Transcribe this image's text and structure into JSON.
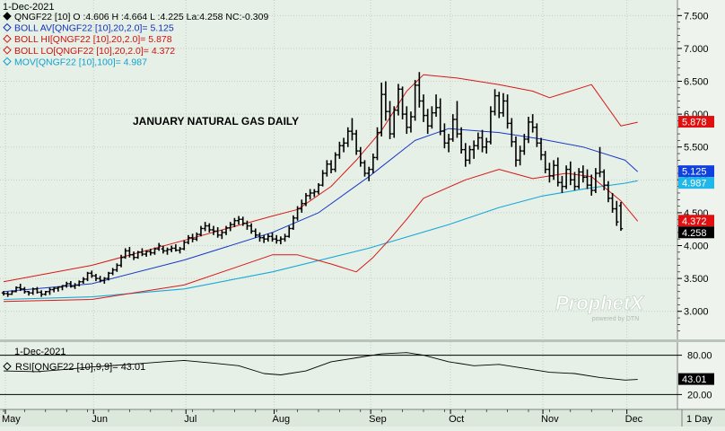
{
  "main_panel": {
    "date": "1-Dec-2021",
    "legend": [
      {
        "text": "QNGF22 [10] O :4.606 H :4.664 L :4.225 La:4.258 NC:-0.309",
        "color": "#000000",
        "marker": "diamond-filled"
      },
      {
        "text": "BOLL AV[QNGF22 [10],20,2.0]= 5.125",
        "color": "#1030c0",
        "marker": "diamond-open"
      },
      {
        "text": "BOLL HI[QNGF22 [10],20,2.0]= 5.878",
        "color": "#d01010",
        "marker": "diamond-open"
      },
      {
        "text": "BOLL LO[QNGF22 [10],20,2.0]= 4.372",
        "color": "#d01010",
        "marker": "diamond-open"
      },
      {
        "text": "MOV[QNGF22 [10],100]= 4.987",
        "color": "#10a0d0",
        "marker": "diamond-open"
      }
    ],
    "annotation": "JANUARY NATURAL GAS DAILY",
    "y_ticks": [
      "7.500",
      "7.000",
      "6.500",
      "6.000",
      "5.500",
      "5.000",
      "4.500",
      "4.000",
      "3.500",
      "3.000"
    ],
    "price_tags": [
      {
        "value": 5.878,
        "text": "5.878",
        "bg": "#e01010",
        "fg": "#ffffff"
      },
      {
        "value": 5.125,
        "text": "5.125",
        "bg": "#1040e0",
        "fg": "#ffffff"
      },
      {
        "value": 4.987,
        "text": "4.987",
        "bg": "#20b8e8",
        "fg": "#ffffff"
      },
      {
        "value": 4.372,
        "text": "4.372",
        "bg": "#e01010",
        "fg": "#ffffff"
      },
      {
        "value": 4.258,
        "text": "4.258",
        "bg": "#000000",
        "fg": "#ffffff"
      }
    ],
    "watermark": {
      "brand": "ProphetX",
      "sub": "powered by DTN"
    }
  },
  "rsi_panel": {
    "date": "1-Dec-2021",
    "legend": {
      "text": "RSI[QNGF22 [10],9,9]= 43.01",
      "marker": "diamond-open"
    },
    "y_ticks": [
      "80.00",
      "20.00"
    ],
    "value_tag": {
      "value": 43.01,
      "text": "43.01",
      "bg": "#000000",
      "fg": "#ffffff"
    }
  },
  "x_axis": {
    "months": [
      "May",
      "Jun",
      "Jul",
      "Aug",
      "Sep",
      "Oct",
      "Nov",
      "Dec"
    ],
    "interval": "1 Day"
  },
  "chart_data": {
    "type": "ohlc",
    "ylim": [
      2.6,
      7.6
    ],
    "rsi_ylim": [
      0,
      100
    ],
    "rsi_levels": [
      80,
      20
    ],
    "month_starts": [
      0,
      21,
      43,
      64,
      87,
      106,
      128,
      148
    ],
    "bars": [
      [
        3.28,
        3.31,
        3.24,
        3.27
      ],
      [
        3.27,
        3.3,
        3.22,
        3.26
      ],
      [
        3.26,
        3.32,
        3.25,
        3.3
      ],
      [
        3.3,
        3.38,
        3.29,
        3.36
      ],
      [
        3.36,
        3.42,
        3.31,
        3.34
      ],
      [
        3.34,
        3.37,
        3.27,
        3.3
      ],
      [
        3.3,
        3.31,
        3.24,
        3.28
      ],
      [
        3.28,
        3.36,
        3.25,
        3.34
      ],
      [
        3.34,
        3.37,
        3.27,
        3.29
      ],
      [
        3.29,
        3.32,
        3.22,
        3.26
      ],
      [
        3.26,
        3.31,
        3.24,
        3.3
      ],
      [
        3.3,
        3.36,
        3.25,
        3.33
      ],
      [
        3.33,
        3.37,
        3.29,
        3.35
      ],
      [
        3.35,
        3.38,
        3.3,
        3.37
      ],
      [
        3.37,
        3.4,
        3.32,
        3.39
      ],
      [
        3.39,
        3.45,
        3.36,
        3.42
      ],
      [
        3.42,
        3.46,
        3.36,
        3.38
      ],
      [
        3.38,
        3.43,
        3.34,
        3.4
      ],
      [
        3.4,
        3.47,
        3.38,
        3.45
      ],
      [
        3.45,
        3.52,
        3.42,
        3.49
      ],
      [
        3.49,
        3.6,
        3.46,
        3.58
      ],
      [
        3.58,
        3.62,
        3.51,
        3.54
      ],
      [
        3.54,
        3.57,
        3.46,
        3.5
      ],
      [
        3.5,
        3.54,
        3.44,
        3.47
      ],
      [
        3.47,
        3.52,
        3.42,
        3.5
      ],
      [
        3.5,
        3.6,
        3.47,
        3.58
      ],
      [
        3.58,
        3.66,
        3.55,
        3.63
      ],
      [
        3.63,
        3.73,
        3.6,
        3.7
      ],
      [
        3.7,
        3.86,
        3.67,
        3.82
      ],
      [
        3.82,
        3.96,
        3.8,
        3.92
      ],
      [
        3.92,
        3.98,
        3.82,
        3.86
      ],
      [
        3.86,
        3.91,
        3.78,
        3.82
      ],
      [
        3.82,
        3.92,
        3.8,
        3.9
      ],
      [
        3.9,
        3.96,
        3.84,
        3.87
      ],
      [
        3.87,
        3.93,
        3.83,
        3.91
      ],
      [
        3.91,
        3.95,
        3.85,
        3.89
      ],
      [
        3.89,
        3.97,
        3.86,
        3.95
      ],
      [
        3.95,
        4.04,
        3.92,
        4.0
      ],
      [
        3.95,
        4.0,
        3.88,
        3.92
      ],
      [
        3.92,
        3.97,
        3.86,
        3.94
      ],
      [
        3.94,
        4.0,
        3.9,
        3.96
      ],
      [
        3.96,
        4.02,
        3.91,
        3.93
      ],
      [
        3.93,
        3.98,
        3.88,
        3.95
      ],
      [
        3.95,
        4.08,
        3.93,
        4.05
      ],
      [
        4.05,
        4.16,
        4.02,
        4.12
      ],
      [
        4.12,
        4.18,
        4.05,
        4.1
      ],
      [
        4.1,
        4.2,
        4.07,
        4.17
      ],
      [
        4.17,
        4.3,
        4.14,
        4.26
      ],
      [
        4.26,
        4.36,
        4.22,
        4.3
      ],
      [
        4.3,
        4.34,
        4.2,
        4.24
      ],
      [
        4.24,
        4.3,
        4.16,
        4.22
      ],
      [
        4.22,
        4.28,
        4.12,
        4.16
      ],
      [
        4.16,
        4.24,
        4.1,
        4.2
      ],
      [
        4.2,
        4.3,
        4.16,
        4.27
      ],
      [
        4.27,
        4.36,
        4.22,
        4.32
      ],
      [
        4.32,
        4.42,
        4.28,
        4.38
      ],
      [
        4.38,
        4.45,
        4.32,
        4.4
      ],
      [
        4.4,
        4.44,
        4.3,
        4.34
      ],
      [
        4.34,
        4.38,
        4.24,
        4.3
      ],
      [
        4.3,
        4.34,
        4.18,
        4.22
      ],
      [
        4.22,
        4.26,
        4.12,
        4.16
      ],
      [
        4.16,
        4.2,
        4.06,
        4.12
      ],
      [
        4.12,
        4.16,
        4.04,
        4.1
      ],
      [
        4.1,
        4.18,
        4.06,
        4.14
      ],
      [
        4.14,
        4.2,
        4.06,
        4.1
      ],
      [
        4.1,
        4.16,
        4.03,
        4.08
      ],
      [
        4.08,
        4.14,
        4.02,
        4.1
      ],
      [
        4.1,
        4.18,
        4.06,
        4.14
      ],
      [
        4.14,
        4.3,
        4.12,
        4.26
      ],
      [
        4.26,
        4.46,
        4.24,
        4.42
      ],
      [
        4.42,
        4.6,
        4.38,
        4.56
      ],
      [
        4.56,
        4.7,
        4.5,
        4.64
      ],
      [
        4.64,
        4.8,
        4.6,
        4.76
      ],
      [
        4.76,
        4.86,
        4.7,
        4.8
      ],
      [
        4.8,
        4.86,
        4.74,
        4.82
      ],
      [
        4.82,
        4.95,
        4.78,
        4.92
      ],
      [
        4.92,
        5.15,
        4.9,
        5.1
      ],
      [
        5.1,
        5.3,
        5.05,
        5.24
      ],
      [
        5.24,
        5.3,
        5.1,
        5.16
      ],
      [
        5.16,
        5.42,
        5.12,
        5.38
      ],
      [
        5.38,
        5.58,
        5.32,
        5.52
      ],
      [
        5.52,
        5.64,
        5.42,
        5.56
      ],
      [
        5.56,
        5.8,
        5.5,
        5.74
      ],
      [
        5.74,
        5.94,
        5.6,
        5.7
      ],
      [
        5.7,
        5.76,
        5.38,
        5.44
      ],
      [
        5.44,
        5.5,
        5.2,
        5.26
      ],
      [
        5.26,
        5.3,
        5.05,
        5.1
      ],
      [
        5.1,
        5.2,
        4.98,
        5.16
      ],
      [
        5.16,
        5.4,
        5.1,
        5.34
      ],
      [
        5.34,
        5.8,
        5.3,
        5.72
      ],
      [
        5.72,
        6.48,
        5.66,
        6.3
      ],
      [
        6.3,
        6.5,
        5.9,
        6.04
      ],
      [
        6.04,
        6.2,
        5.62,
        5.7
      ],
      [
        5.7,
        6.12,
        5.64,
        6.06
      ],
      [
        6.06,
        6.46,
        5.98,
        6.38
      ],
      [
        6.38,
        6.42,
        5.92,
        6.0
      ],
      [
        6.0,
        6.12,
        5.7,
        5.8
      ],
      [
        5.8,
        6.04,
        5.72,
        5.96
      ],
      [
        5.96,
        6.52,
        5.9,
        6.44
      ],
      [
        6.44,
        6.64,
        6.1,
        6.2
      ],
      [
        6.2,
        6.3,
        5.88,
        5.98
      ],
      [
        5.98,
        6.08,
        5.7,
        5.82
      ],
      [
        5.82,
        6.12,
        5.78,
        6.02
      ],
      [
        6.02,
        6.3,
        5.96,
        6.1
      ],
      [
        6.1,
        6.24,
        5.68,
        5.74
      ],
      [
        5.74,
        5.86,
        5.48,
        5.56
      ],
      [
        5.56,
        5.7,
        5.42,
        5.62
      ],
      [
        5.62,
        6.0,
        5.58,
        5.92
      ],
      [
        5.92,
        6.2,
        5.64,
        5.7
      ],
      [
        5.7,
        5.8,
        5.4,
        5.46
      ],
      [
        5.46,
        5.56,
        5.2,
        5.3
      ],
      [
        5.3,
        5.52,
        5.24,
        5.46
      ],
      [
        5.46,
        5.6,
        5.32,
        5.52
      ],
      [
        5.52,
        5.72,
        5.46,
        5.64
      ],
      [
        5.64,
        5.76,
        5.42,
        5.5
      ],
      [
        5.5,
        5.64,
        5.4,
        5.58
      ],
      [
        5.58,
        6.12,
        5.54,
        6.04
      ],
      [
        6.04,
        6.38,
        5.98,
        6.28
      ],
      [
        6.28,
        6.34,
        5.94,
        6.02
      ],
      [
        6.02,
        6.32,
        5.96,
        6.2
      ],
      [
        6.2,
        6.3,
        5.78,
        5.86
      ],
      [
        5.86,
        5.94,
        5.5,
        5.58
      ],
      [
        5.58,
        5.66,
        5.2,
        5.3
      ],
      [
        5.3,
        5.52,
        5.22,
        5.44
      ],
      [
        5.44,
        5.7,
        5.38,
        5.62
      ],
      [
        5.62,
        5.96,
        5.56,
        5.88
      ],
      [
        5.88,
        6.0,
        5.72,
        5.8
      ],
      [
        5.8,
        5.86,
        5.5,
        5.56
      ],
      [
        5.56,
        5.64,
        5.3,
        5.38
      ],
      [
        5.38,
        5.44,
        5.1,
        5.16
      ],
      [
        5.16,
        5.26,
        4.96,
        5.06
      ],
      [
        5.06,
        5.3,
        5.0,
        5.22
      ],
      [
        5.22,
        5.34,
        4.9,
        4.96
      ],
      [
        4.96,
        5.06,
        4.8,
        4.9
      ],
      [
        4.9,
        5.22,
        4.86,
        5.16
      ],
      [
        5.16,
        5.28,
        4.92,
        5.0
      ],
      [
        5.0,
        5.12,
        4.84,
        4.9
      ],
      [
        4.9,
        5.18,
        4.86,
        5.12
      ],
      [
        5.12,
        5.22,
        4.96,
        5.04
      ],
      [
        5.04,
        5.16,
        4.86,
        4.92
      ],
      [
        4.92,
        5.08,
        4.76,
        4.84
      ],
      [
        4.84,
        5.18,
        4.8,
        5.1
      ],
      [
        5.1,
        5.5,
        5.04,
        5.12
      ],
      [
        5.12,
        5.16,
        4.84,
        4.92
      ],
      [
        4.92,
        4.98,
        4.66,
        4.72
      ],
      [
        4.72,
        4.8,
        4.5,
        4.56
      ],
      [
        4.56,
        4.68,
        4.3,
        4.36
      ],
      [
        4.606,
        4.664,
        4.225,
        4.258
      ]
    ],
    "bollinger": {
      "ma_x": [
        0,
        21,
        43,
        64,
        75,
        87,
        98,
        106,
        118,
        128,
        138,
        148,
        151
      ],
      "ma_y": [
        3.3,
        3.42,
        3.78,
        4.2,
        4.5,
        5.05,
        5.6,
        5.78,
        5.72,
        5.62,
        5.5,
        5.3,
        5.125
      ],
      "hi_x": [
        0,
        21,
        43,
        64,
        70,
        78,
        84,
        90,
        96,
        100,
        108,
        118,
        126,
        130,
        140,
        147,
        151
      ],
      "hi_y": [
        3.45,
        3.7,
        4.08,
        4.45,
        4.55,
        4.9,
        5.3,
        5.75,
        6.35,
        6.6,
        6.55,
        6.45,
        6.35,
        6.25,
        6.45,
        5.82,
        5.878
      ],
      "lo_x": [
        0,
        21,
        43,
        64,
        70,
        78,
        84,
        88,
        92,
        96,
        100,
        110,
        118,
        126,
        134,
        140,
        147,
        151
      ],
      "lo_y": [
        3.15,
        3.18,
        3.4,
        3.86,
        3.86,
        3.72,
        3.6,
        3.82,
        4.1,
        4.4,
        4.72,
        5.0,
        5.16,
        5.02,
        5.1,
        5.05,
        4.68,
        4.372
      ]
    },
    "mov": {
      "x": [
        0,
        21,
        43,
        64,
        87,
        106,
        118,
        128,
        138,
        148,
        151
      ],
      "y": [
        3.18,
        3.22,
        3.34,
        3.6,
        3.96,
        4.32,
        4.58,
        4.75,
        4.86,
        4.95,
        4.987
      ]
    },
    "rsi": {
      "x": [
        0,
        8,
        14,
        21,
        30,
        38,
        43,
        50,
        56,
        62,
        66,
        72,
        78,
        84,
        90,
        96,
        100,
        106,
        112,
        118,
        124,
        130,
        136,
        142,
        148,
        151
      ],
      "y": [
        56,
        55,
        58,
        62,
        66,
        70,
        72,
        68,
        64,
        52,
        50,
        56,
        70,
        76,
        82,
        84,
        80,
        70,
        64,
        66,
        60,
        54,
        52,
        46,
        42,
        43.01
      ]
    }
  }
}
